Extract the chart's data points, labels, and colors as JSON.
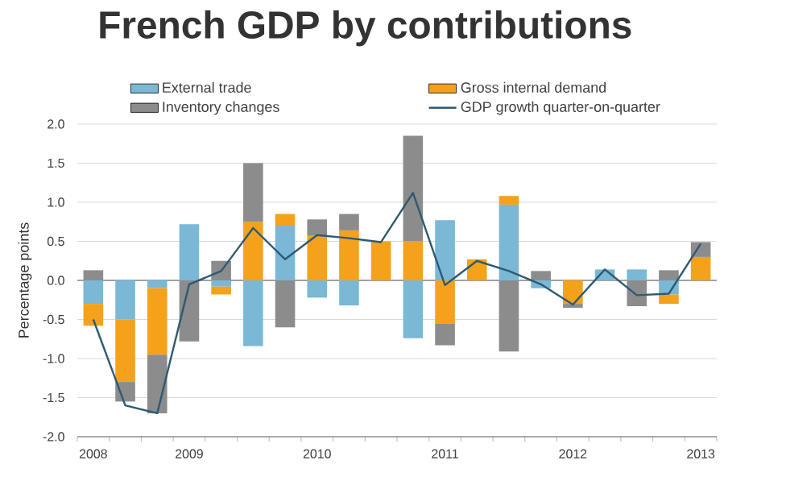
{
  "chart_data": {
    "type": "bar",
    "title": "French GDP by contributions",
    "ylabel": "Percentage points",
    "categories": [
      "2008",
      null,
      null,
      "2009",
      null,
      null,
      null,
      "2010",
      null,
      null,
      null,
      "2011",
      null,
      null,
      null,
      "2012",
      null,
      null,
      null,
      "2013"
    ],
    "stacked": true,
    "series": [
      {
        "name": "External trade",
        "color": "#7ab8d6",
        "values": [
          -0.3,
          -0.5,
          -0.1,
          0.72,
          -0.08,
          -0.84,
          0.7,
          -0.22,
          -0.32,
          null,
          -0.74,
          0.77,
          null,
          0.97,
          -0.1,
          null,
          0.14,
          0.14,
          -0.18,
          null
        ]
      },
      {
        "name": "Gross internal demand",
        "color": "#f5a11c",
        "values": [
          -0.28,
          -0.8,
          -0.85,
          null,
          -0.1,
          0.75,
          0.15,
          0.57,
          0.64,
          0.5,
          0.5,
          -0.55,
          0.27,
          0.11,
          null,
          -0.3,
          null,
          null,
          -0.12,
          0.3
        ]
      },
      {
        "name": "Inventory changes",
        "color": "#8c8c8c",
        "values": [
          0.13,
          -0.25,
          -0.75,
          -0.78,
          0.25,
          0.75,
          -0.6,
          0.21,
          0.21,
          null,
          1.35,
          -0.28,
          null,
          -0.91,
          0.12,
          -0.05,
          null,
          -0.33,
          0.13,
          0.19
        ]
      },
      {
        "name": "GDP growth quarter-on-quarter",
        "type": "line",
        "color": "#2d5b73",
        "values": [
          -0.5,
          -1.6,
          -1.7,
          -0.05,
          0.12,
          0.67,
          0.27,
          0.58,
          0.54,
          0.49,
          1.12,
          -0.06,
          0.25,
          0.12,
          -0.05,
          -0.31,
          0.14,
          -0.19,
          -0.17,
          0.47
        ]
      }
    ],
    "ylim": [
      -2,
      2
    ],
    "yticks": [
      {
        "value": -2,
        "label": "-2.0"
      },
      {
        "value": -1.5,
        "label": "-1.5"
      },
      {
        "value": -1,
        "label": "-1.0"
      },
      {
        "value": -0.5,
        "label": "-0.5"
      },
      {
        "value": 0,
        "label": "0.0"
      },
      {
        "value": 0.5,
        "label": "0.5"
      },
      {
        "value": 1,
        "label": "1.0"
      },
      {
        "value": 1.5,
        "label": "1.5"
      },
      {
        "value": 2,
        "label": "2.0"
      }
    ],
    "ref_lines": [
      {
        "axis": "y",
        "value": 0,
        "color": "#333333"
      }
    ],
    "grid": "y",
    "legend": "top",
    "line_style": "solid"
  }
}
